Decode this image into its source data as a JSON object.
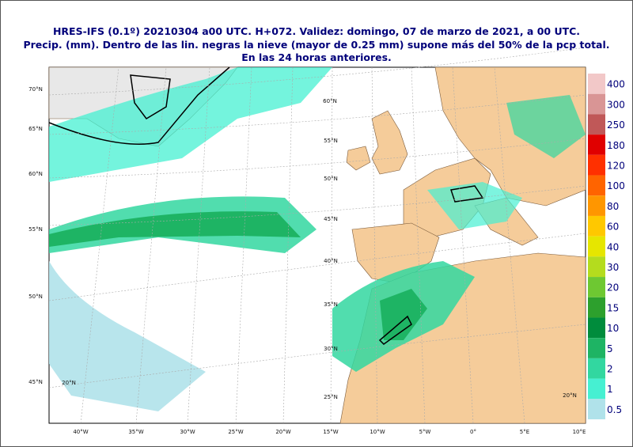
{
  "header": {
    "lines": [
      "HRES-IFS (0.1º) 20210304 a00 UTC.  H+072. Validez: domingo, 07 de marzo de 2021,  a  00 UTC.",
      "Precip. (mm). Dentro de las lin. negras la nieve (mayor de 0.25 mm) supone más del 50% de la pcp total.",
      "En las 24 horas anteriores."
    ]
  },
  "colorbar": {
    "levels": [
      {
        "label": "400",
        "color": "#f2c8c8"
      },
      {
        "label": "300",
        "color": "#d99595"
      },
      {
        "label": "250",
        "color": "#c05858"
      },
      {
        "label": "180",
        "color": "#e00000"
      },
      {
        "label": "120",
        "color": "#ff3000"
      },
      {
        "label": "100",
        "color": "#ff6400"
      },
      {
        "label": "80",
        "color": "#ff9600"
      },
      {
        "label": "60",
        "color": "#ffc800"
      },
      {
        "label": "40",
        "color": "#e6e600"
      },
      {
        "label": "30",
        "color": "#b4dc1e"
      },
      {
        "label": "20",
        "color": "#6ec832"
      },
      {
        "label": "15",
        "color": "#2da02d"
      },
      {
        "label": "10",
        "color": "#008c3c"
      },
      {
        "label": "5",
        "color": "#1eb464"
      },
      {
        "label": "2",
        "color": "#32d7a0"
      },
      {
        "label": "1",
        "color": "#46f0d2"
      },
      {
        "label": "0.5",
        "color": "#b0e2ea"
      }
    ]
  },
  "axes": {
    "lon_labels": [
      "40°W",
      "35°W",
      "30°W",
      "25°W",
      "20°W",
      "15°W",
      "10°W",
      "5°W",
      "0°",
      "5°E",
      "10°E"
    ],
    "lat_labels": [
      "70°N",
      "65°N",
      "60°N",
      "55°N",
      "50°N",
      "45°N"
    ],
    "grid_labels": [
      "60°N",
      "55°N",
      "50°N",
      "45°N",
      "40°N",
      "35°N",
      "30°N",
      "25°N",
      "20°N",
      "20°N"
    ]
  }
}
